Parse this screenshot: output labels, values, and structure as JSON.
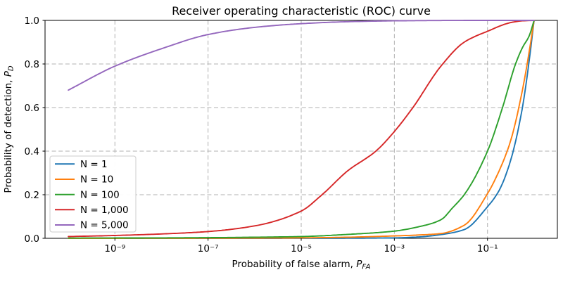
{
  "chart_data": {
    "type": "line",
    "title": "Receiver operating characteristic (ROC) curve",
    "xlabel": {
      "text": "Probability of false alarm, ",
      "var": "P",
      "sub": "FA"
    },
    "ylabel": {
      "text": "Probability of detection, ",
      "var": "P",
      "sub": "D"
    },
    "xscale": "log",
    "xlim": [
      3.162e-11,
      3.162
    ],
    "ylim": [
      0,
      1
    ],
    "xticks": {
      "values": [
        1e-09,
        1e-07,
        1e-05,
        0.001,
        0.1
      ],
      "labels": [
        "10⁻⁹",
        "10⁻⁷",
        "10⁻⁵",
        "10⁻³",
        "10⁻¹"
      ]
    },
    "yticks": {
      "values": [
        0.0,
        0.2,
        0.4,
        0.6,
        0.8,
        1.0
      ],
      "labels": [
        "0.0",
        "0.2",
        "0.4",
        "0.6",
        "0.8",
        "1.0"
      ]
    },
    "grid": {
      "on": true,
      "style": "dashed",
      "color": "#b0b0b0"
    },
    "legend": {
      "position": "lower left",
      "border_color": "#cccccc",
      "background": "#ffffff"
    },
    "series": [
      {
        "label": "N = 1",
        "color": "#1f77b4",
        "x": [
          1e-10,
          1e-08,
          1e-06,
          0.0001,
          0.001,
          0.00316,
          0.01,
          0.0316,
          0.1,
          0.178,
          0.316,
          0.562,
          0.79,
          1
        ],
        "y": [
          0,
          0,
          0.0001,
          0.0005,
          0.002,
          0.006,
          0.017,
          0.04,
          0.145,
          0.22,
          0.36,
          0.6,
          0.82,
          1
        ]
      },
      {
        "label": "N = 10",
        "color": "#ff7f0e",
        "x": [
          1e-10,
          1e-08,
          1e-06,
          1e-05,
          0.0001,
          0.001,
          0.00316,
          0.01,
          0.0316,
          0.1,
          0.178,
          0.316,
          0.562,
          0.79,
          1
        ],
        "y": [
          0,
          0.0003,
          0.001,
          0.002,
          0.005,
          0.011,
          0.015,
          0.022,
          0.06,
          0.205,
          0.31,
          0.45,
          0.68,
          0.86,
          1
        ]
      },
      {
        "label": "N = 100",
        "color": "#2ca02c",
        "x": [
          1e-10,
          1e-08,
          1e-07,
          1e-06,
          1e-05,
          0.0001,
          0.001,
          0.00316,
          0.01,
          0.0178,
          0.0316,
          0.1,
          0.21,
          0.4,
          0.562,
          0.79,
          1
        ],
        "y": [
          0.001,
          0.002,
          0.003,
          0.005,
          0.008,
          0.018,
          0.033,
          0.052,
          0.085,
          0.14,
          0.2,
          0.4,
          0.6,
          0.8,
          0.875,
          0.93,
          1
        ]
      },
      {
        "label": "N = 1,000",
        "color": "#d62728",
        "x": [
          1e-10,
          1e-09,
          1e-08,
          1e-07,
          1e-06,
          1e-05,
          2.8e-05,
          0.0001,
          0.0004,
          0.001,
          0.0025,
          0.01,
          0.0316,
          0.1,
          0.316,
          0.562,
          1
        ],
        "y": [
          0.008,
          0.013,
          0.02,
          0.031,
          0.057,
          0.125,
          0.2,
          0.31,
          0.4,
          0.49,
          0.6,
          0.79,
          0.9,
          0.95,
          0.99,
          0.998,
          1
        ]
      },
      {
        "label": "N = 5,000",
        "color": "#9467bd",
        "x": [
          1e-10,
          1e-09,
          1e-08,
          1e-07,
          1e-06,
          1e-05,
          0.0001,
          0.001,
          0.01,
          0.1,
          1
        ],
        "y": [
          0.68,
          0.79,
          0.87,
          0.935,
          0.968,
          0.985,
          0.994,
          0.998,
          0.9995,
          1,
          1
        ]
      }
    ]
  }
}
